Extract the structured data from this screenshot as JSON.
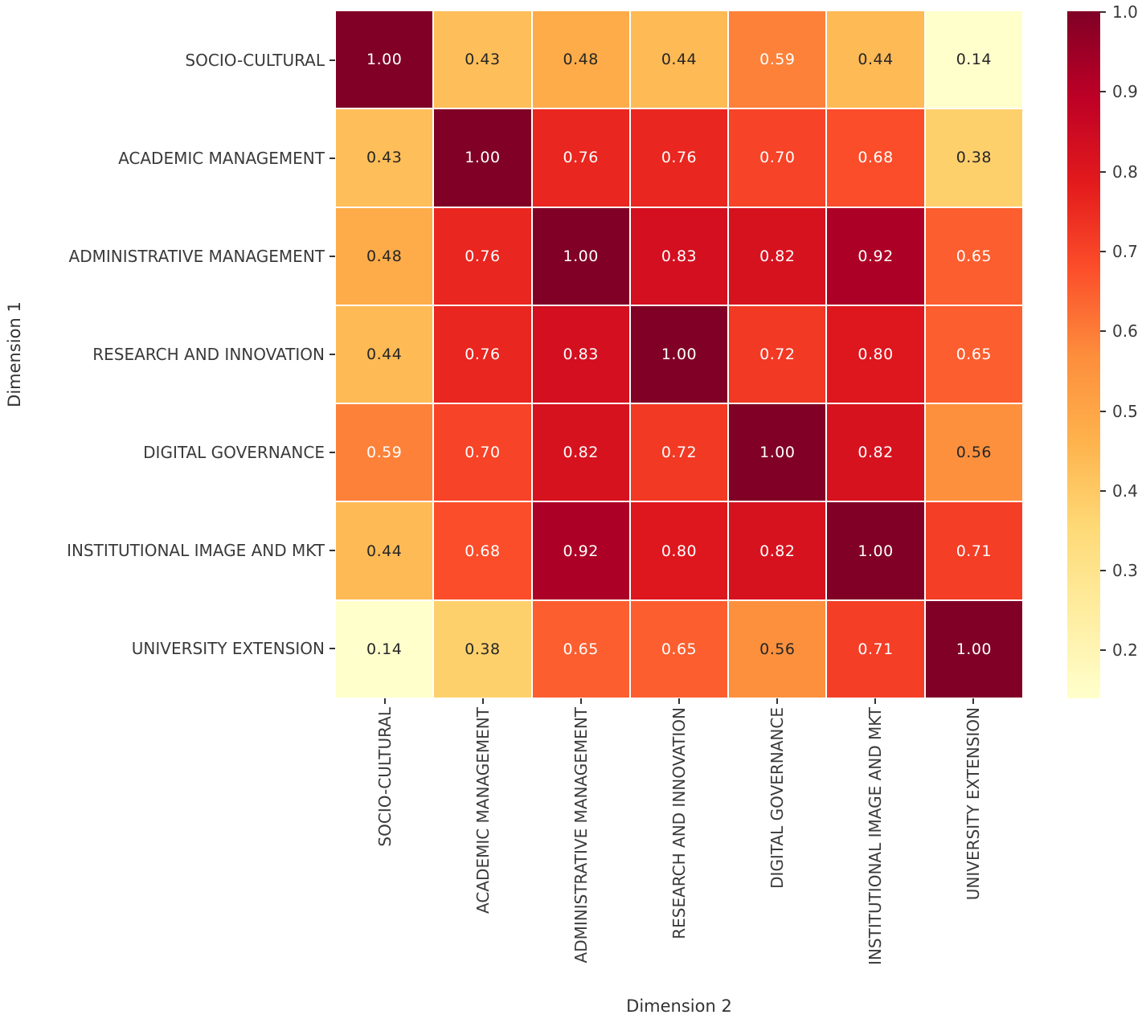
{
  "chart_data": {
    "type": "heatmap",
    "title": "",
    "xlabel": "Dimension 2",
    "ylabel": "Dimension 1",
    "categories": [
      "SOCIO-CULTURAL",
      "ACADEMIC MANAGEMENT",
      "ADMINISTRATIVE MANAGEMENT",
      "RESEARCH AND INNOVATION",
      "DIGITAL GOVERNANCE",
      "INSTITUTIONAL IMAGE AND MKT",
      "UNIVERSITY EXTENSION"
    ],
    "matrix": [
      [
        1.0,
        0.43,
        0.48,
        0.44,
        0.59,
        0.44,
        0.14
      ],
      [
        0.43,
        1.0,
        0.76,
        0.76,
        0.7,
        0.68,
        0.38
      ],
      [
        0.48,
        0.76,
        1.0,
        0.83,
        0.82,
        0.92,
        0.65
      ],
      [
        0.44,
        0.76,
        0.83,
        1.0,
        0.72,
        0.8,
        0.65
      ],
      [
        0.59,
        0.7,
        0.82,
        0.72,
        1.0,
        0.82,
        0.56
      ],
      [
        0.44,
        0.68,
        0.92,
        0.8,
        0.82,
        1.0,
        0.71
      ],
      [
        0.14,
        0.38,
        0.65,
        0.65,
        0.56,
        0.71,
        1.0
      ]
    ],
    "vmin": 0.14,
    "vmax": 1.0,
    "value_decimals": 2,
    "colormap": {
      "name": "YlOrRd",
      "stops": [
        "#ffffcc",
        "#ffeda0",
        "#fed976",
        "#feb24c",
        "#fd8d3c",
        "#fc4e2a",
        "#e31a1c",
        "#bd0026",
        "#800026"
      ]
    },
    "colorbar": {
      "position": "right",
      "ticks": [
        {
          "label": "1.0",
          "value": 1.0
        },
        {
          "label": "0.9",
          "value": 0.9
        },
        {
          "label": "0.8",
          "value": 0.8
        },
        {
          "label": "0.7",
          "value": 0.7
        },
        {
          "label": "0.6",
          "value": 0.6
        },
        {
          "label": "0.5",
          "value": 0.5
        },
        {
          "label": "0.4",
          "value": 0.4
        },
        {
          "label": "0.3",
          "value": 0.3
        },
        {
          "label": "0.2",
          "value": 0.2
        }
      ]
    },
    "annotation_colors": {
      "dark": "#262626",
      "light": "#ffffff"
    },
    "grid_line_color": "#ffffff",
    "tick_label_color": "#3a3a3a",
    "legend_position": "none",
    "grid": false
  }
}
